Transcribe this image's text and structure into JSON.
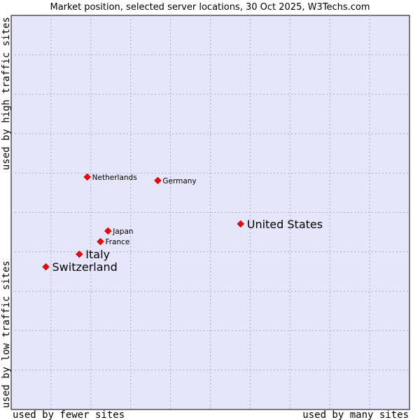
{
  "chart_data": {
    "type": "scatter",
    "title": "Market position, selected server locations, 30 Oct 2025, W3Techs.com",
    "xlabel_left": "used by fewer sites",
    "xlabel_right": "used by many sites",
    "ylabel_bottom": "used by low traffic sites",
    "ylabel_top": "used by high traffic sites",
    "xlim": [
      0,
      100
    ],
    "ylim": [
      0,
      100
    ],
    "grid": true,
    "colors": {
      "plot_bg": "#e6e6fa",
      "grid": "#aaaacc",
      "point": "#ff0000",
      "point_edge": "#cc0000",
      "axis": "#000000"
    },
    "points": [
      {
        "label": "United States",
        "x": 57.6,
        "y": 47.1,
        "size": "large"
      },
      {
        "label": "Netherlands",
        "x": 19.1,
        "y": 59.0,
        "size": "small"
      },
      {
        "label": "Germany",
        "x": 36.8,
        "y": 58.1,
        "size": "small"
      },
      {
        "label": "Japan",
        "x": 24.3,
        "y": 45.3,
        "size": "small"
      },
      {
        "label": "France",
        "x": 22.4,
        "y": 42.6,
        "size": "small"
      },
      {
        "label": "Italy",
        "x": 17.1,
        "y": 39.4,
        "size": "large"
      },
      {
        "label": "Switzerland",
        "x": 8.7,
        "y": 36.2,
        "size": "large"
      }
    ]
  }
}
